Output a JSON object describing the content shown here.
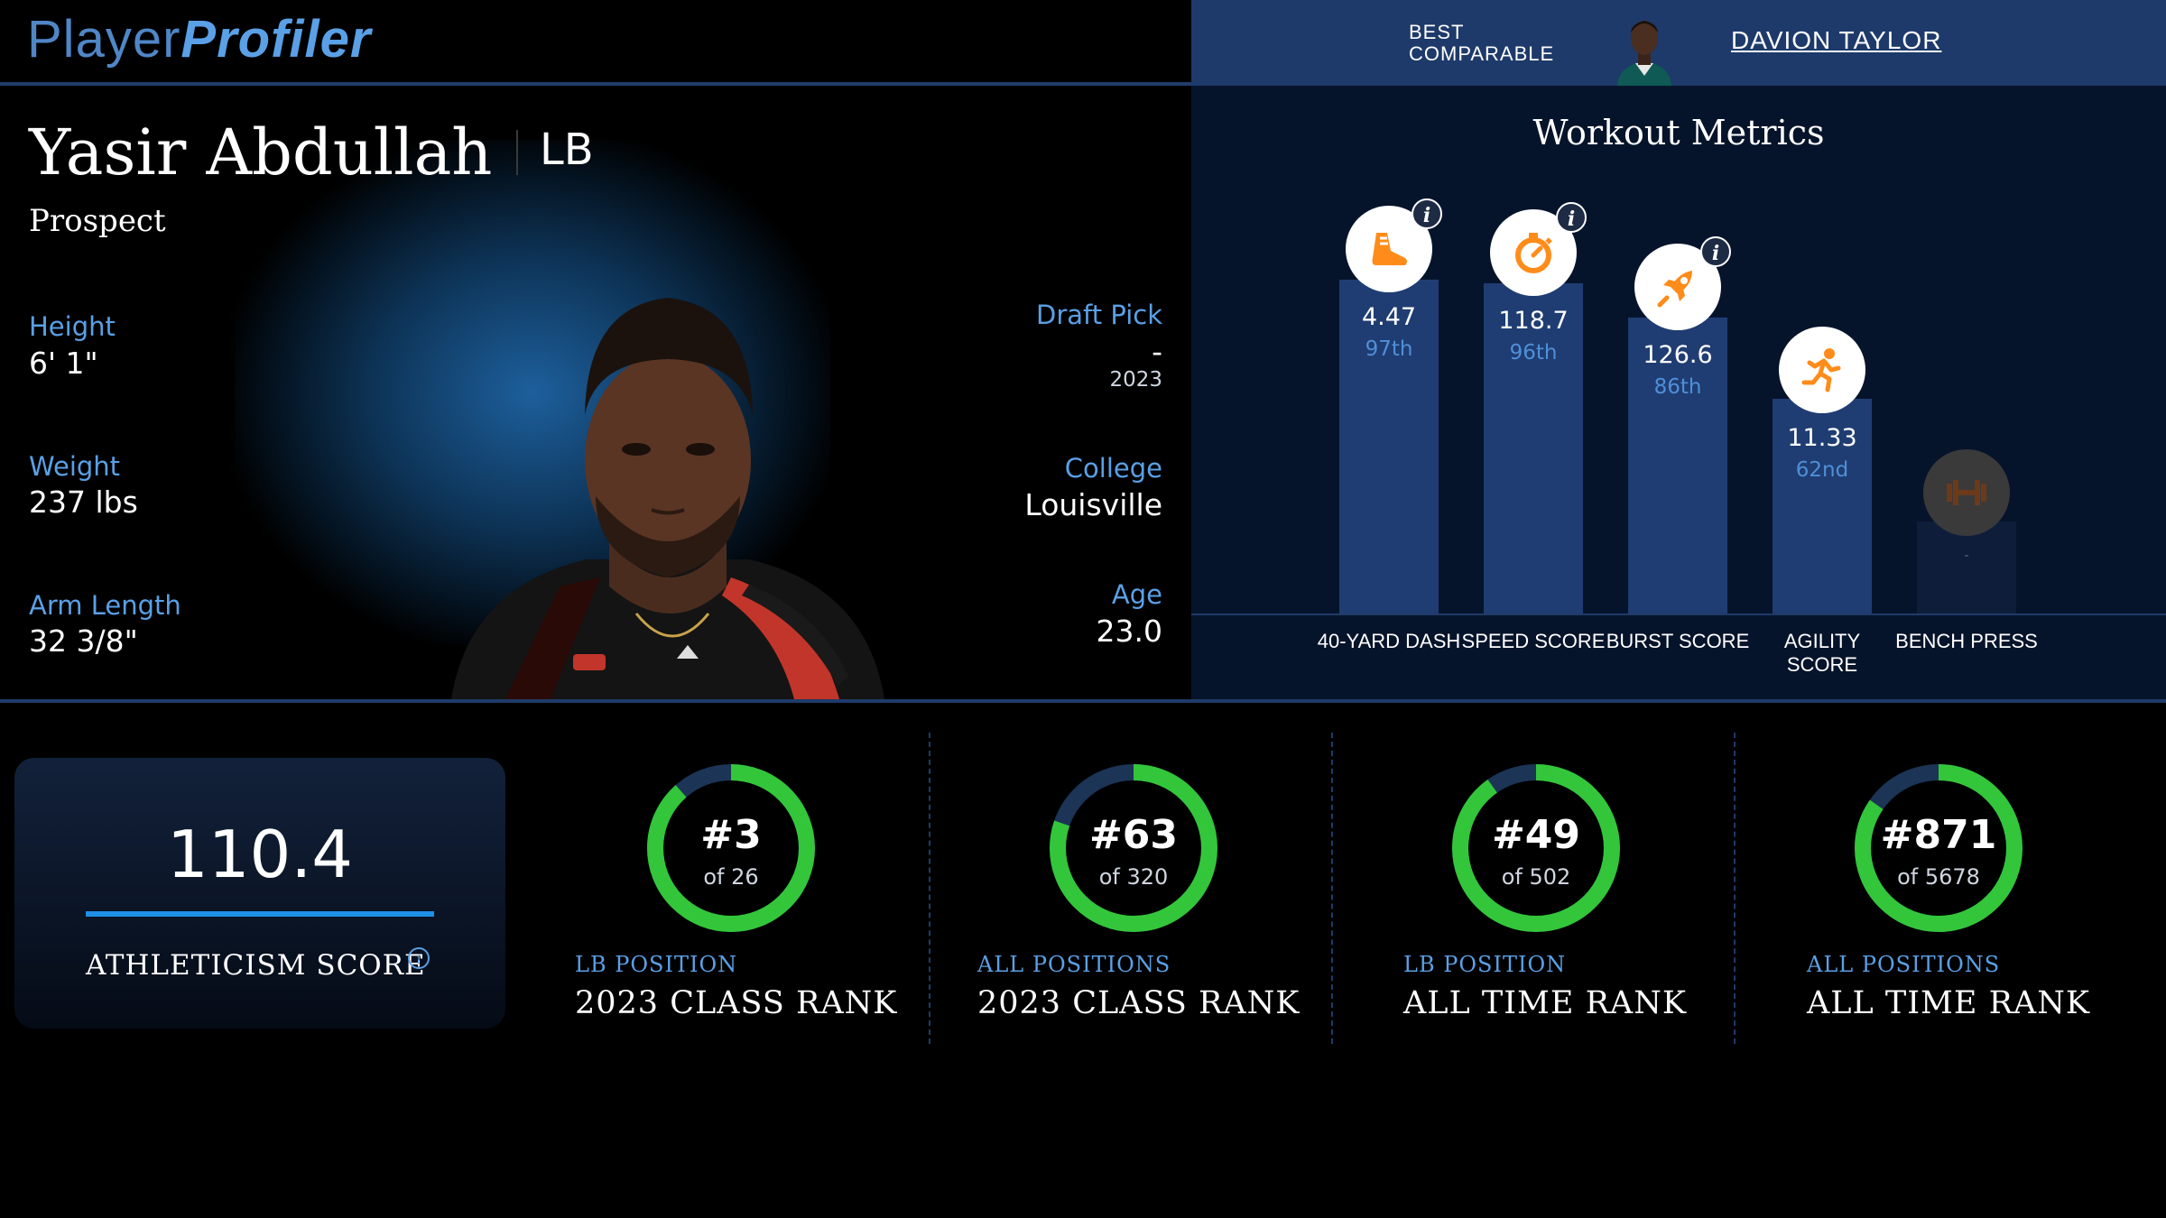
{
  "header": {
    "logo_part1": "Player",
    "logo_part2": "Profiler",
    "best_comparable_label": "BEST COMPARABLE",
    "best_comparable_name": "DAVION TAYLOR"
  },
  "player": {
    "name": "Yasir Abdullah",
    "position": "LB",
    "status": "Prospect",
    "height_label": "Height",
    "height": "6' 1\"",
    "weight_label": "Weight",
    "weight": "237 lbs",
    "arm_label": "Arm Length",
    "arm_length": "32 3/8\"",
    "draft_pick_label": "Draft Pick",
    "draft_pick": "-",
    "draft_year": "2023",
    "college_label": "College",
    "college": "Louisville",
    "age_label": "Age",
    "age": "23.0"
  },
  "workout": {
    "title": "Workout Metrics",
    "metrics": [
      {
        "label": "40-YARD DASH",
        "value": "4.47",
        "percentile": "97th",
        "pct_value": 97,
        "icon": "running-shoe-icon"
      },
      {
        "label": "SPEED SCORE",
        "value": "118.7",
        "percentile": "96th",
        "pct_value": 96,
        "icon": "stopwatch-icon"
      },
      {
        "label": "BURST SCORE",
        "value": "126.6",
        "percentile": "86th",
        "pct_value": 86,
        "icon": "rocket-icon"
      },
      {
        "label": "AGILITY SCORE",
        "value": "11.33",
        "percentile": "62nd",
        "pct_value": 62,
        "icon": "sprinter-icon"
      },
      {
        "label": "BENCH PRESS",
        "value": "-",
        "percentile": "",
        "pct_value": 25,
        "icon": "barbell-icon"
      }
    ],
    "accent_color": "#ff8c1a",
    "bar_color": "#1f3d72"
  },
  "athleticism": {
    "score": "110.4",
    "label": "ATHLETICISM SCORE"
  },
  "ranks": [
    {
      "rank": "#3",
      "of": "of 26",
      "sub": "LB POSITION",
      "title": "2023 CLASS RANK",
      "fill": 0.885
    },
    {
      "rank": "#63",
      "of": "of 320",
      "sub": "ALL POSITIONS",
      "title": "2023 CLASS RANK",
      "fill": 0.803
    },
    {
      "rank": "#49",
      "of": "of 502",
      "sub": "LB POSITION",
      "title": "ALL TIME RANK",
      "fill": 0.902
    },
    {
      "rank": "#871",
      "of": "of 5678",
      "sub": "ALL POSITIONS",
      "title": "ALL TIME RANK",
      "fill": 0.847
    }
  ],
  "colors": {
    "ring_fill": "#33c63a",
    "ring_track": "#1c3456",
    "label_blue": "#5aa0e6"
  }
}
